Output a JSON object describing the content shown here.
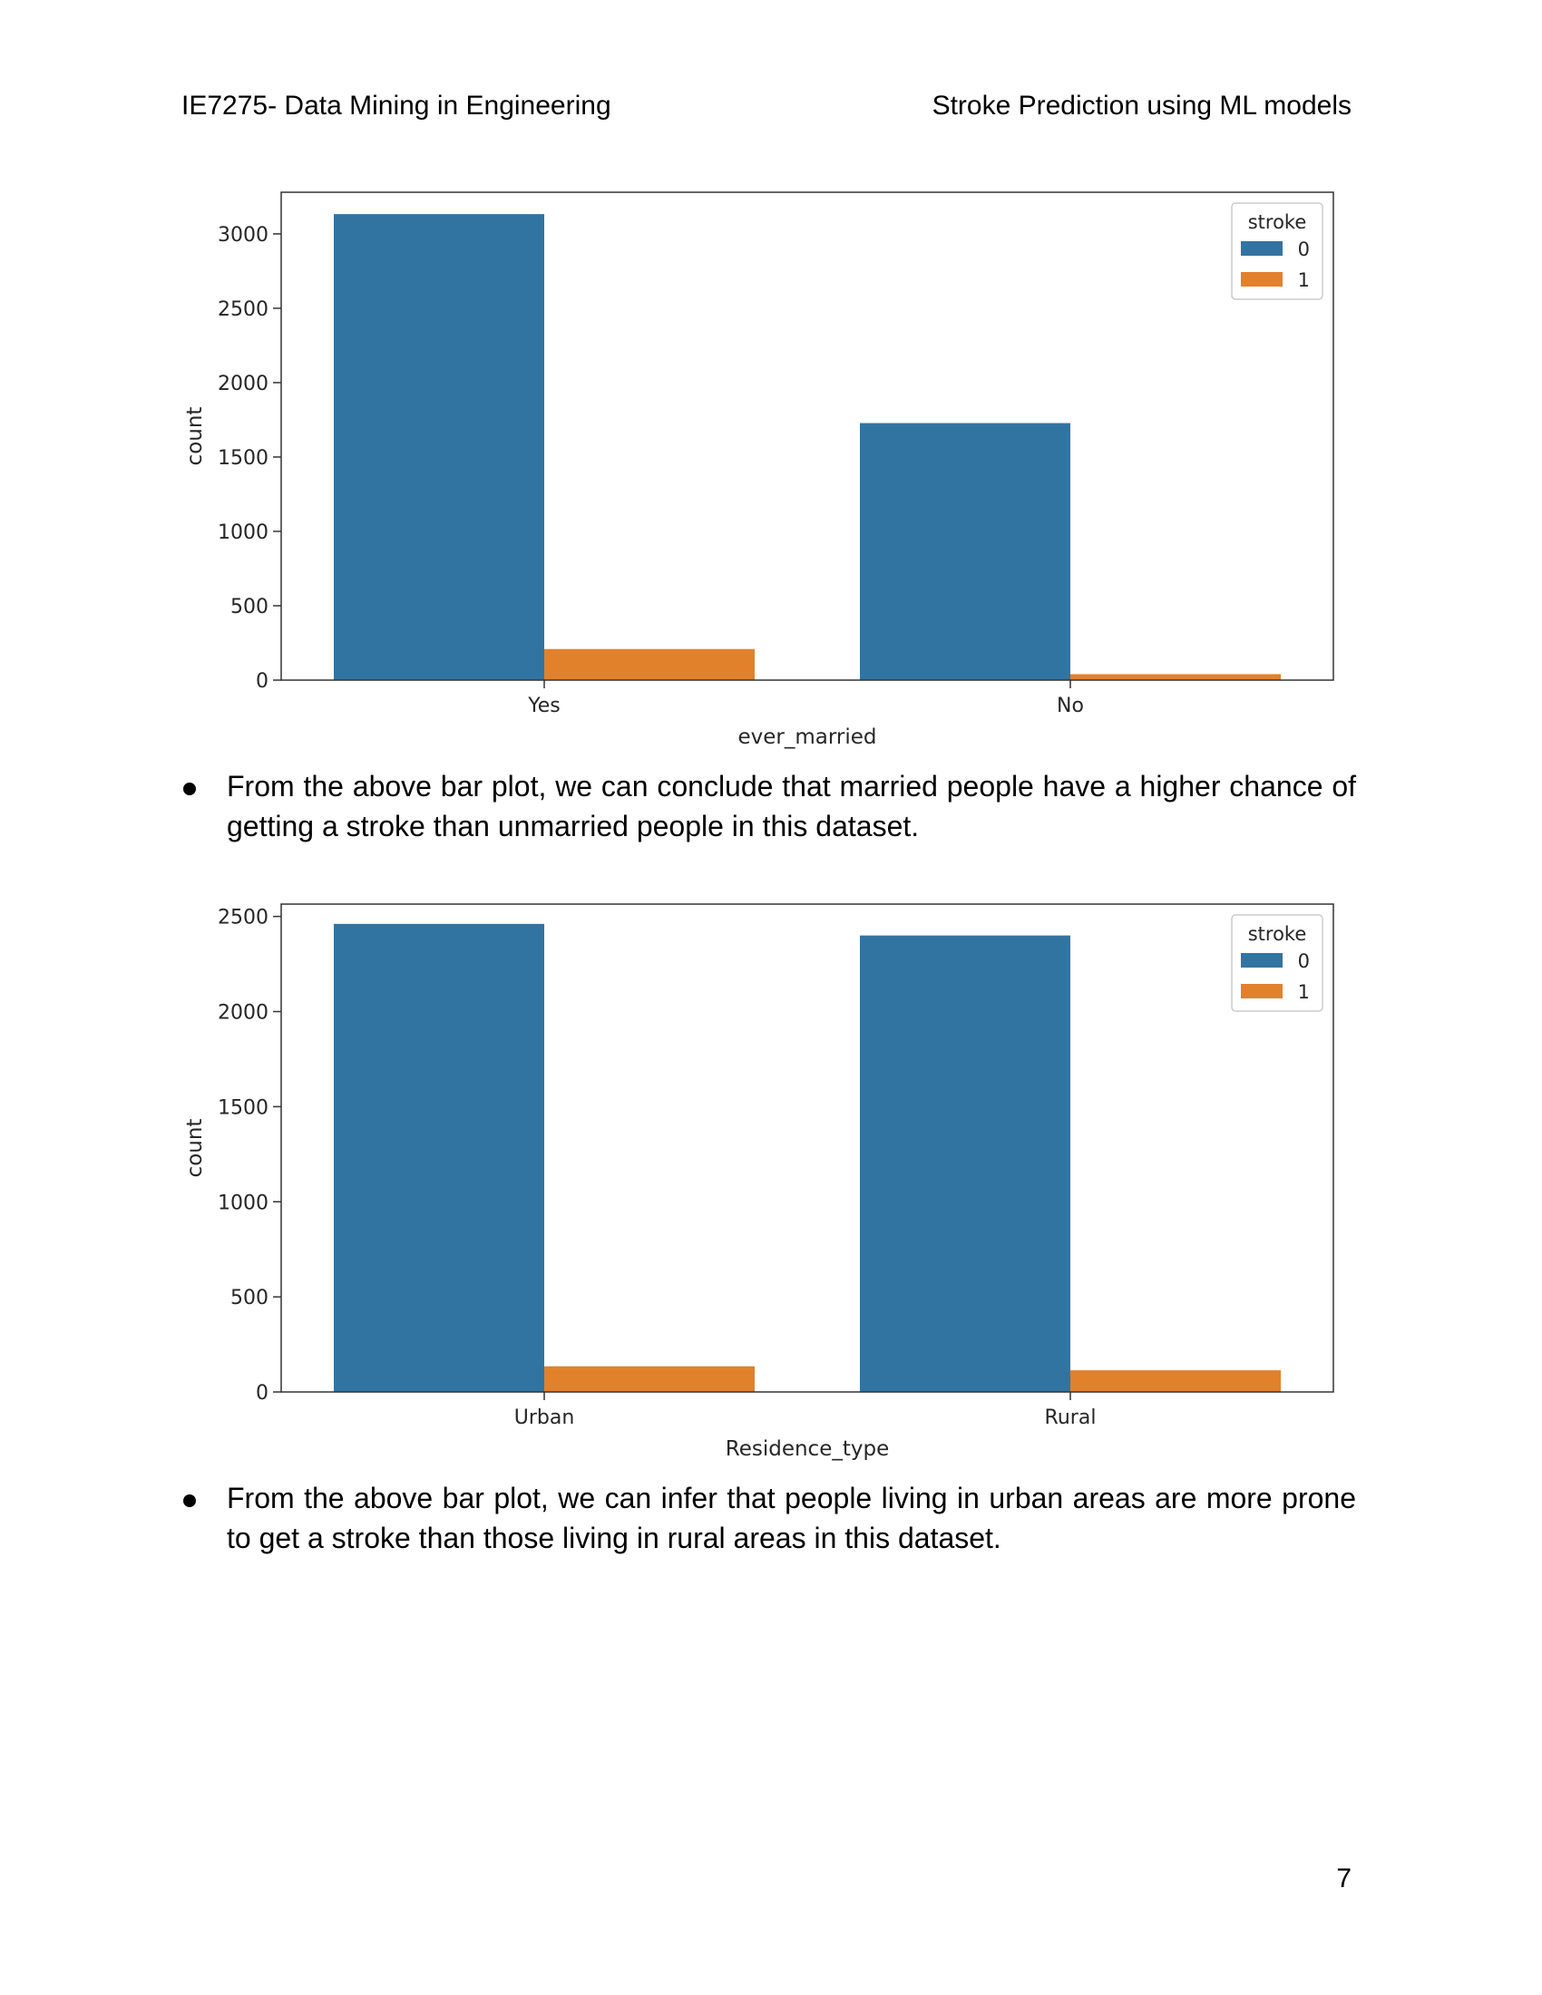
{
  "header": {
    "left": "IE7275- Data Mining in Engineering",
    "right": "Stroke Prediction using ML models"
  },
  "chart_data": [
    {
      "type": "bar",
      "categories": [
        "Yes",
        "No"
      ],
      "series": [
        {
          "name": "0",
          "values": [
            3133,
            1728
          ],
          "color": "#3274a1"
        },
        {
          "name": "1",
          "values": [
            209,
            40
          ],
          "color": "#e1812c"
        }
      ],
      "xlabel": "ever_married",
      "ylabel": "count",
      "ylim": [
        0,
        3280
      ],
      "yticks": [
        0,
        500,
        1000,
        1500,
        2000,
        2500,
        3000
      ],
      "legend": {
        "title": "stroke",
        "entries": [
          "0",
          "1"
        ],
        "placement": "top-right"
      },
      "grid": false
    },
    {
      "type": "bar",
      "categories": [
        "Urban",
        "Rural"
      ],
      "series": [
        {
          "name": "0",
          "values": [
            2461,
            2400
          ],
          "color": "#3274a1"
        },
        {
          "name": "1",
          "values": [
            135,
            114
          ],
          "color": "#e1812c"
        }
      ],
      "xlabel": "Residence_type",
      "ylabel": "count",
      "ylim": [
        0,
        2565
      ],
      "yticks": [
        0,
        500,
        1000,
        1500,
        2000,
        2500
      ],
      "legend": {
        "title": "stroke",
        "entries": [
          "0",
          "1"
        ],
        "placement": "top-right"
      },
      "grid": false
    }
  ],
  "paragraphs": [
    "From the above bar plot, we can conclude that married people have a higher chance of getting a stroke than unmarried people in this dataset.",
    "From the above bar plot, we can infer that people living in urban areas are more prone to get a stroke than those living in rural areas in this dataset."
  ],
  "page_number": "7"
}
